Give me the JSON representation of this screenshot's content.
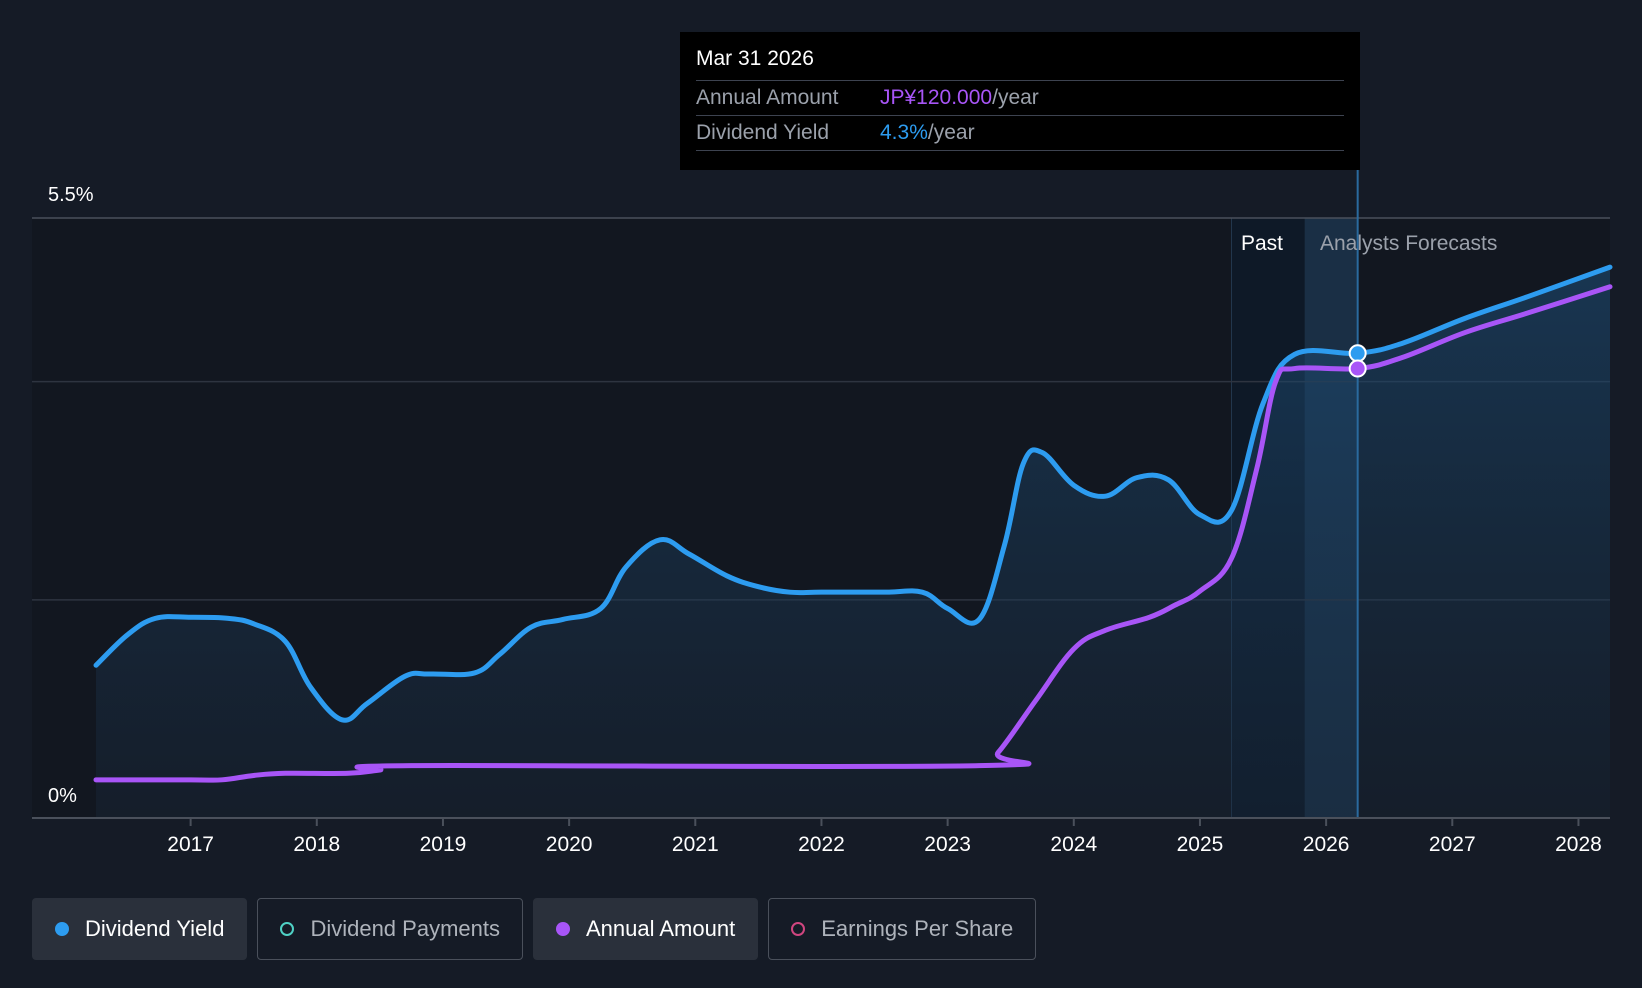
{
  "chart_data": {
    "type": "line",
    "y_axis": {
      "min_label": "0%",
      "max_label": "5.5%",
      "ylim": [
        0,
        5.5
      ],
      "gridlines": [
        0,
        2,
        4,
        5.5
      ]
    },
    "x_axis": {
      "ticks": [
        "2017",
        "2018",
        "2019",
        "2020",
        "2021",
        "2022",
        "2023",
        "2024",
        "2025",
        "2026",
        "2027",
        "2028"
      ],
      "range": [
        2016.25,
        2028.25
      ]
    },
    "regions": {
      "past_label": "Past",
      "forecast_label": "Analysts Forecasts",
      "past_start": 2025.25,
      "forecast_start": 2025.83,
      "cursor": 2026.25
    },
    "series": [
      {
        "name": "Dividend Yield",
        "color": "#2d9cf0",
        "unit": "%",
        "points": [
          [
            2016.25,
            1.4
          ],
          [
            2016.5,
            1.68
          ],
          [
            2016.72,
            1.83
          ],
          [
            2017.0,
            1.84
          ],
          [
            2017.3,
            1.83
          ],
          [
            2017.5,
            1.78
          ],
          [
            2017.75,
            1.62
          ],
          [
            2017.95,
            1.2
          ],
          [
            2018.2,
            0.9
          ],
          [
            2018.4,
            1.05
          ],
          [
            2018.7,
            1.3
          ],
          [
            2018.9,
            1.32
          ],
          [
            2019.25,
            1.33
          ],
          [
            2019.45,
            1.5
          ],
          [
            2019.7,
            1.75
          ],
          [
            2019.95,
            1.82
          ],
          [
            2020.25,
            1.92
          ],
          [
            2020.45,
            2.3
          ],
          [
            2020.72,
            2.55
          ],
          [
            2020.95,
            2.42
          ],
          [
            2021.25,
            2.22
          ],
          [
            2021.5,
            2.12
          ],
          [
            2021.75,
            2.07
          ],
          [
            2022.0,
            2.07
          ],
          [
            2022.5,
            2.07
          ],
          [
            2022.8,
            2.07
          ],
          [
            2023.0,
            1.92
          ],
          [
            2023.25,
            1.82
          ],
          [
            2023.45,
            2.5
          ],
          [
            2023.6,
            3.25
          ],
          [
            2023.75,
            3.35
          ],
          [
            2024.0,
            3.05
          ],
          [
            2024.25,
            2.95
          ],
          [
            2024.5,
            3.12
          ],
          [
            2024.75,
            3.1
          ],
          [
            2025.0,
            2.78
          ],
          [
            2025.25,
            2.82
          ],
          [
            2025.5,
            3.8
          ],
          [
            2025.75,
            4.25
          ],
          [
            2026.25,
            4.26
          ],
          [
            2026.6,
            4.35
          ],
          [
            2027.1,
            4.58
          ],
          [
            2027.6,
            4.78
          ],
          [
            2028.25,
            5.05
          ]
        ]
      },
      {
        "name": "Annual Amount",
        "color": "#a855f7",
        "unit": "relative",
        "points": [
          [
            2016.25,
            0.35
          ],
          [
            2017.0,
            0.35
          ],
          [
            2017.25,
            0.35
          ],
          [
            2017.5,
            0.39
          ],
          [
            2017.75,
            0.41
          ],
          [
            2018.25,
            0.41
          ],
          [
            2018.5,
            0.44
          ],
          [
            2018.75,
            0.48
          ],
          [
            2023.25,
            0.48
          ],
          [
            2023.4,
            0.6
          ],
          [
            2023.7,
            1.08
          ],
          [
            2024.0,
            1.55
          ],
          [
            2024.25,
            1.72
          ],
          [
            2024.6,
            1.84
          ],
          [
            2024.8,
            1.95
          ],
          [
            2025.0,
            2.08
          ],
          [
            2025.25,
            2.38
          ],
          [
            2025.45,
            3.2
          ],
          [
            2025.6,
            4.0
          ],
          [
            2025.75,
            4.12
          ],
          [
            2026.25,
            4.12
          ],
          [
            2026.6,
            4.22
          ],
          [
            2027.1,
            4.45
          ],
          [
            2027.6,
            4.63
          ],
          [
            2028.25,
            4.87
          ]
        ]
      }
    ],
    "highlight": {
      "x": 2026.25,
      "yield_value": 4.26,
      "amount_value": 4.12
    },
    "tooltip": {
      "date": "Mar 31 2026",
      "rows": [
        {
          "label": "Annual Amount",
          "value": "JP¥120.000",
          "unit": "/year"
        },
        {
          "label": "Dividend Yield",
          "value": "4.3%",
          "unit": "/year"
        }
      ]
    },
    "legend": [
      {
        "label": "Dividend Yield",
        "color": "#2d9cf0",
        "active": true,
        "filled": true
      },
      {
        "label": "Dividend Payments",
        "color": "#4fd1c5",
        "active": false,
        "filled": false
      },
      {
        "label": "Annual Amount",
        "color": "#a855f7",
        "active": true,
        "filled": true
      },
      {
        "label": "Earnings Per Share",
        "color": "#d0457f",
        "active": false,
        "filled": false
      }
    ]
  }
}
